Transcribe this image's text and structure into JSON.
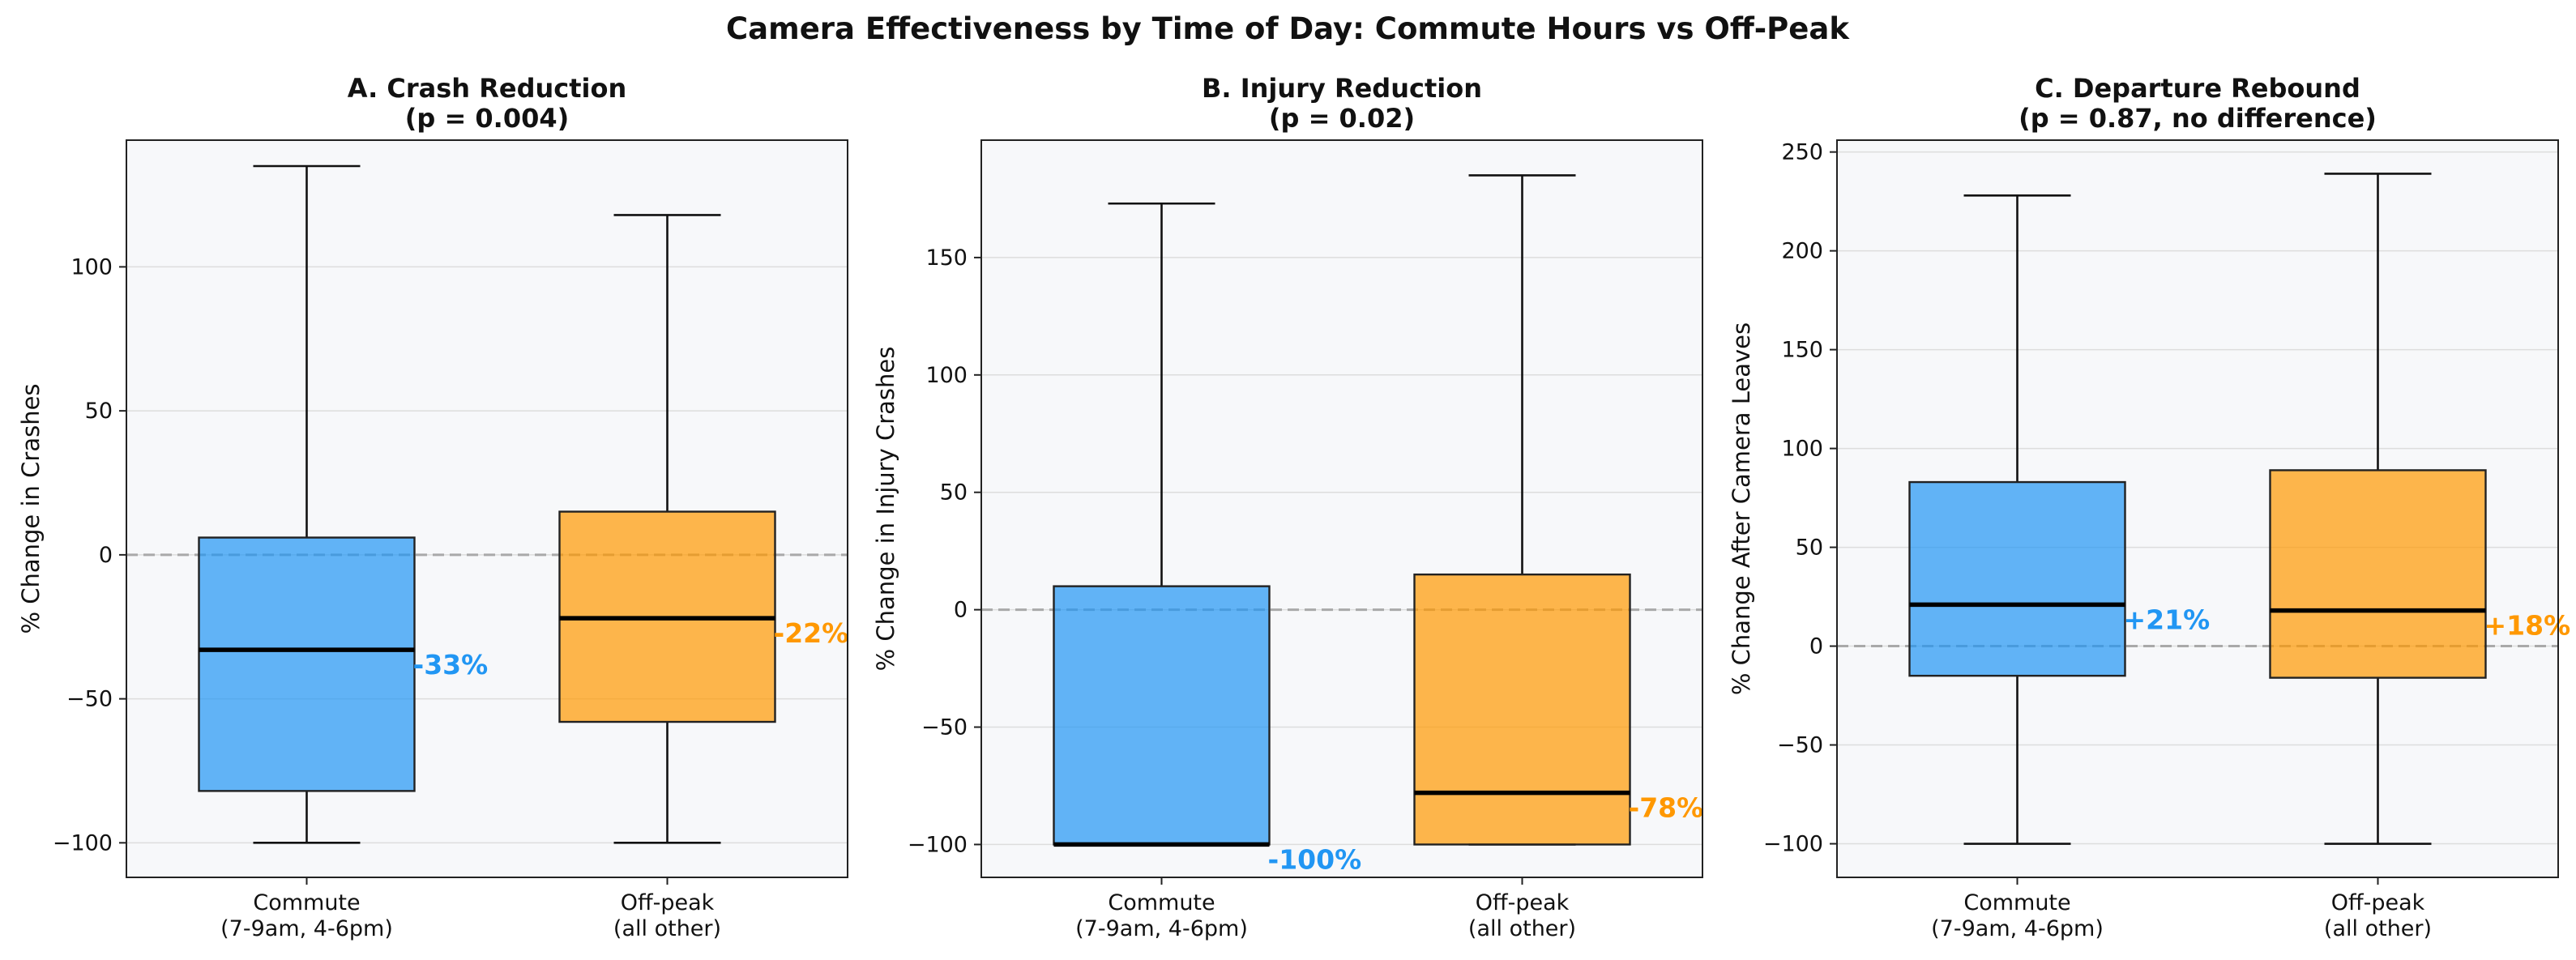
{
  "figure": {
    "title": "Camera Effectiveness by Time of Day: Commute Hours vs Off-Peak"
  },
  "colors": {
    "commute": "#2196F3",
    "offpeak": "#FF9800",
    "panel_bg": "#F7F8FA",
    "zero_line": "#A9A9A9",
    "grid": "#DDDDDD"
  },
  "chart_data": [
    {
      "type": "box",
      "title_line1": "A. Crash Reduction",
      "title_line2": "(p = 0.004)",
      "xlabel": "",
      "ylabel": "% Change in Crashes",
      "ylim": [
        -112,
        144
      ],
      "yticks": [
        -100,
        -50,
        0,
        50,
        100
      ],
      "ytick_labels": [
        "−100",
        "−50",
        "0",
        "50",
        "100"
      ],
      "grid": true,
      "zero_line": true,
      "categories": [
        [
          "Commute",
          "(7-9am, 4-6pm)"
        ],
        [
          "Off-peak",
          "(all other)"
        ]
      ],
      "boxes": [
        {
          "group": "commute",
          "whisker_low": -100,
          "q1": -82,
          "median": -33,
          "q3": 6,
          "whisker_high": 135,
          "label": "-33%"
        },
        {
          "group": "offpeak",
          "whisker_low": -100,
          "q1": -58,
          "median": -22,
          "q3": 15,
          "whisker_high": 118,
          "label": "-22%"
        }
      ]
    },
    {
      "type": "box",
      "title_line1": "B. Injury Reduction",
      "title_line2": "(p = 0.02)",
      "xlabel": "",
      "ylabel": "% Change in Injury Crashes",
      "ylim": [
        -114,
        200
      ],
      "yticks": [
        -100,
        -50,
        0,
        50,
        100,
        150
      ],
      "ytick_labels": [
        "−100",
        "−50",
        "0",
        "50",
        "100",
        "150"
      ],
      "grid": true,
      "zero_line": true,
      "categories": [
        [
          "Commute",
          "(7-9am, 4-6pm)"
        ],
        [
          "Off-peak",
          "(all other)"
        ]
      ],
      "boxes": [
        {
          "group": "commute",
          "whisker_low": -100,
          "q1": -100,
          "median": -100,
          "q3": 10,
          "whisker_high": 173,
          "label": "-100%"
        },
        {
          "group": "offpeak",
          "whisker_low": -100,
          "q1": -100,
          "median": -78,
          "q3": 15,
          "whisker_high": 185,
          "label": "-78%"
        }
      ]
    },
    {
      "type": "box",
      "title_line1": "C. Departure Rebound",
      "title_line2": "(p = 0.87, no difference)",
      "xlabel": "",
      "ylabel": "% Change After Camera Leaves",
      "ylim": [
        -117,
        256
      ],
      "yticks": [
        -100,
        -50,
        0,
        50,
        100,
        150,
        200,
        250
      ],
      "ytick_labels": [
        "−100",
        "−50",
        "0",
        "50",
        "100",
        "150",
        "200",
        "250"
      ],
      "grid": true,
      "zero_line": true,
      "categories": [
        [
          "Commute",
          "(7-9am, 4-6pm)"
        ],
        [
          "Off-peak",
          "(all other)"
        ]
      ],
      "boxes": [
        {
          "group": "commute",
          "whisker_low": -100,
          "q1": -15,
          "median": 21,
          "q3": 83,
          "whisker_high": 228,
          "label": "+21%"
        },
        {
          "group": "offpeak",
          "whisker_low": -100,
          "q1": -16,
          "median": 18,
          "q3": 89,
          "whisker_high": 239,
          "label": "+18%"
        }
      ]
    }
  ]
}
